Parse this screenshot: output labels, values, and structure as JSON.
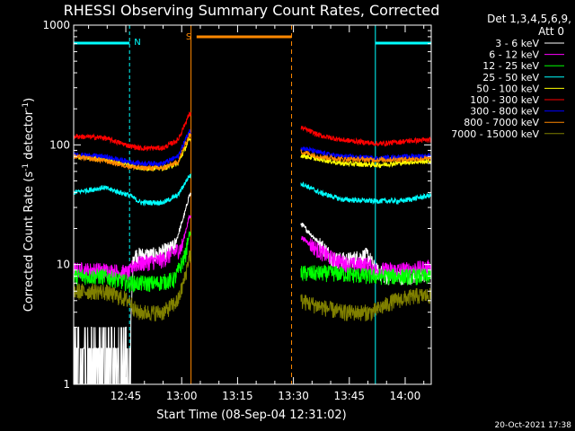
{
  "chart_data": {
    "type": "line",
    "title": "RHESSI Observing Summary Count Rates, Corrected",
    "xlabel": "Start Time (08-Sep-04 12:31:02)",
    "ylabel_main": "Corrected Count Rate (s",
    "ylabel_sup1": "-1",
    "ylabel_mid": " detector",
    "ylabel_sup2": "-1",
    "ylabel_end": ")",
    "yscale": "log",
    "ylim": [
      1,
      1000
    ],
    "xlim_min": [
      0,
      96
    ],
    "x_ticks": [
      {
        "min": 14,
        "label": "12:45"
      },
      {
        "min": 29,
        "label": "13:00"
      },
      {
        "min": 44,
        "label": "13:15"
      },
      {
        "min": 59,
        "label": "13:30"
      },
      {
        "min": 74,
        "label": "13:45"
      },
      {
        "min": 89,
        "label": "14:00"
      }
    ],
    "y_ticks": [
      {
        "value": 1,
        "label": "1"
      },
      {
        "value": 10,
        "label": "10"
      },
      {
        "value": 100,
        "label": "100"
      },
      {
        "value": 1000,
        "label": "1000"
      }
    ],
    "legend_header": [
      "Det 1,3,4,5,6,9,",
      "Att 0"
    ],
    "legend_position": "right",
    "timestamp": "20-Oct-2021 17:38",
    "segments": [
      [
        0,
        31.5
      ],
      [
        61,
        96
      ]
    ],
    "attenuator_times_min": [
      31.5,
      58.5
    ],
    "night_bars": [
      {
        "label": "N",
        "start": 0,
        "end": 15,
        "color": "#00ffff"
      },
      {
        "label": "",
        "start": 81,
        "end": 96,
        "color": "#00ffff"
      }
    ],
    "saa_bar": {
      "label": "S",
      "start": 33,
      "end": 58.5,
      "color": "#ff8800"
    },
    "series": [
      {
        "name": "3 - 6 keV",
        "color": "#ffffff",
        "seg1": [
          [
            0,
            1.6
          ],
          [
            15,
            1.6
          ],
          [
            16,
            12
          ],
          [
            22,
            12
          ],
          [
            27,
            14
          ],
          [
            30,
            28
          ],
          [
            31,
            38
          ]
        ],
        "seg2": [
          [
            61,
            22
          ],
          [
            66,
            15
          ],
          [
            70,
            11
          ],
          [
            74,
            11
          ],
          [
            79,
            12
          ],
          [
            81,
            9
          ],
          [
            84,
            8
          ],
          [
            90,
            8
          ],
          [
            96,
            8.5
          ]
        ]
      },
      {
        "name": "6 - 12 keV",
        "color": "#ff00ff",
        "seg1": [
          [
            0,
            9
          ],
          [
            8,
            9
          ],
          [
            15,
            8.5
          ],
          [
            16,
            10
          ],
          [
            24,
            11
          ],
          [
            29,
            14
          ],
          [
            31,
            25
          ]
        ],
        "seg2": [
          [
            61,
            17
          ],
          [
            66,
            13
          ],
          [
            70,
            11
          ],
          [
            74,
            10
          ],
          [
            79,
            10
          ],
          [
            81,
            9
          ],
          [
            88,
            9
          ],
          [
            96,
            9.5
          ]
        ]
      },
      {
        "name": "12 - 25 keV",
        "color": "#00ff00",
        "seg1": [
          [
            0,
            8
          ],
          [
            8,
            8
          ],
          [
            15,
            7
          ],
          [
            22,
            7
          ],
          [
            27,
            7.5
          ],
          [
            30,
            12
          ],
          [
            31,
            18
          ]
        ],
        "seg2": [
          [
            61,
            8.5
          ],
          [
            70,
            8.5
          ],
          [
            80,
            8
          ],
          [
            90,
            8
          ],
          [
            96,
            8
          ]
        ]
      },
      {
        "name": "25 - 50 keV",
        "color": "#00ffff",
        "seg1": [
          [
            0,
            40
          ],
          [
            8,
            44
          ],
          [
            15,
            38
          ],
          [
            18,
            33
          ],
          [
            24,
            33
          ],
          [
            28,
            38
          ],
          [
            31,
            55
          ]
        ],
        "seg2": [
          [
            61,
            48
          ],
          [
            66,
            40
          ],
          [
            72,
            35
          ],
          [
            80,
            34
          ],
          [
            88,
            34
          ],
          [
            96,
            38
          ]
        ]
      },
      {
        "name": "50 - 100 keV",
        "color": "#ffff00",
        "seg1": [
          [
            0,
            80
          ],
          [
            8,
            76
          ],
          [
            15,
            68
          ],
          [
            18,
            64
          ],
          [
            24,
            64
          ],
          [
            28,
            70
          ],
          [
            31,
            110
          ]
        ],
        "seg2": [
          [
            61,
            82
          ],
          [
            66,
            76
          ],
          [
            72,
            70
          ],
          [
            82,
            68
          ],
          [
            90,
            72
          ],
          [
            96,
            73
          ]
        ]
      },
      {
        "name": "100 - 300 keV",
        "color": "#ff0000",
        "seg1": [
          [
            0,
            118
          ],
          [
            8,
            115
          ],
          [
            15,
            98
          ],
          [
            18,
            94
          ],
          [
            24,
            94
          ],
          [
            28,
            110
          ],
          [
            31,
            180
          ]
        ],
        "seg2": [
          [
            61,
            140
          ],
          [
            66,
            120
          ],
          [
            72,
            110
          ],
          [
            82,
            102
          ],
          [
            90,
            108
          ],
          [
            96,
            110
          ]
        ]
      },
      {
        "name": "300 - 800 keV",
        "color": "#0000ff",
        "seg1": [
          [
            0,
            83
          ],
          [
            8,
            80
          ],
          [
            15,
            72
          ],
          [
            18,
            70
          ],
          [
            24,
            70
          ],
          [
            28,
            80
          ],
          [
            31,
            130
          ]
        ],
        "seg2": [
          [
            61,
            95
          ],
          [
            66,
            86
          ],
          [
            72,
            80
          ],
          [
            82,
            77
          ],
          [
            90,
            80
          ],
          [
            96,
            81
          ]
        ]
      },
      {
        "name": "800 - 7000 keV",
        "color": "#ff8800",
        "seg1": [
          [
            0,
            80
          ],
          [
            8,
            74
          ],
          [
            15,
            66
          ],
          [
            18,
            64
          ],
          [
            24,
            64
          ],
          [
            28,
            72
          ],
          [
            31,
            120
          ]
        ],
        "seg2": [
          [
            61,
            88
          ],
          [
            66,
            80
          ],
          [
            72,
            76
          ],
          [
            82,
            75
          ],
          [
            90,
            76
          ],
          [
            96,
            77
          ]
        ]
      },
      {
        "name": "7000 - 15000 keV",
        "color": "#808000",
        "seg1": [
          [
            0,
            6
          ],
          [
            8,
            6
          ],
          [
            15,
            5
          ],
          [
            17,
            4
          ],
          [
            24,
            4
          ],
          [
            28,
            5
          ],
          [
            30,
            8
          ],
          [
            31,
            12
          ]
        ],
        "seg2": [
          [
            61,
            5
          ],
          [
            66,
            4.5
          ],
          [
            72,
            4
          ],
          [
            80,
            4
          ],
          [
            86,
            5
          ],
          [
            92,
            5.5
          ],
          [
            96,
            5.5
          ]
        ]
      }
    ]
  }
}
